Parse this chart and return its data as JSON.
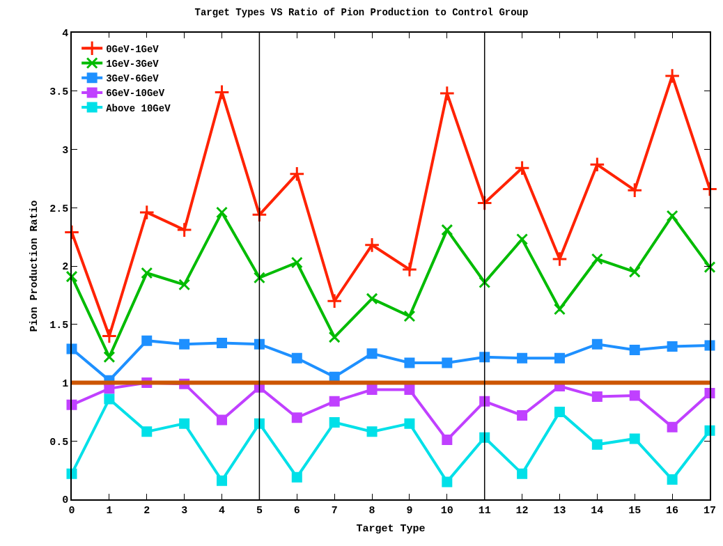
{
  "chart_data": {
    "type": "line",
    "title": "Target Types VS Ratio of Pion Production to Control Group",
    "xlabel": "Target Type",
    "ylabel": "Pion Production Ratio",
    "x": [
      0,
      1,
      2,
      3,
      4,
      5,
      6,
      7,
      8,
      9,
      10,
      11,
      12,
      13,
      14,
      15,
      16,
      17
    ],
    "xlim": [
      0,
      17
    ],
    "xticks": [
      0,
      1,
      2,
      3,
      4,
      5,
      6,
      7,
      8,
      9,
      10,
      11,
      12,
      13,
      14,
      15,
      16,
      17
    ],
    "ylim": [
      0,
      4
    ],
    "yticks": [
      0,
      0.5,
      1,
      1.5,
      2,
      2.5,
      3,
      3.5,
      4
    ],
    "grid": false,
    "legend": "top left",
    "line_style": "solid",
    "series": [
      {
        "name": "0GeV-1GeV",
        "color": "#ff2200",
        "marker": "cross",
        "values": [
          2.29,
          1.4,
          2.46,
          2.31,
          3.49,
          2.44,
          2.79,
          1.7,
          2.18,
          1.97,
          3.48,
          2.54,
          2.84,
          2.06,
          2.87,
          2.65,
          3.63,
          2.66
        ]
      },
      {
        "name": "1GeV-3GeV",
        "color": "#00bb00",
        "marker": "x",
        "values": [
          1.91,
          1.22,
          1.94,
          1.84,
          2.46,
          1.9,
          2.03,
          1.39,
          1.72,
          1.57,
          2.31,
          1.86,
          2.23,
          1.63,
          2.06,
          1.95,
          2.43,
          1.99
        ]
      },
      {
        "name": "3GeV-6GeV",
        "color": "#1e90ff",
        "marker": "square",
        "values": [
          1.29,
          1.02,
          1.36,
          1.33,
          1.34,
          1.33,
          1.21,
          1.05,
          1.25,
          1.17,
          1.17,
          1.22,
          1.21,
          1.21,
          1.33,
          1.28,
          1.31,
          1.32
        ]
      },
      {
        "name": "6GeV-10GeV",
        "color": "#c040ff",
        "marker": "square",
        "values": [
          0.81,
          0.95,
          1.0,
          0.99,
          0.68,
          0.96,
          0.7,
          0.84,
          0.94,
          0.94,
          0.51,
          0.84,
          0.72,
          0.97,
          0.88,
          0.89,
          0.62,
          0.91
        ]
      },
      {
        "name": "Above 10GeV",
        "color": "#00e0e8",
        "marker": "square",
        "values": [
          0.22,
          0.86,
          0.58,
          0.65,
          0.16,
          0.65,
          0.19,
          0.66,
          0.58,
          0.65,
          0.15,
          0.53,
          0.22,
          0.75,
          0.47,
          0.52,
          0.17,
          0.59
        ]
      }
    ],
    "ref_lines": [
      {
        "axis": "y",
        "value": 1,
        "color": "#cc5500"
      },
      {
        "axis": "x",
        "value": 5,
        "color": "#000000"
      },
      {
        "axis": "x",
        "value": 11,
        "color": "#000000"
      }
    ]
  }
}
